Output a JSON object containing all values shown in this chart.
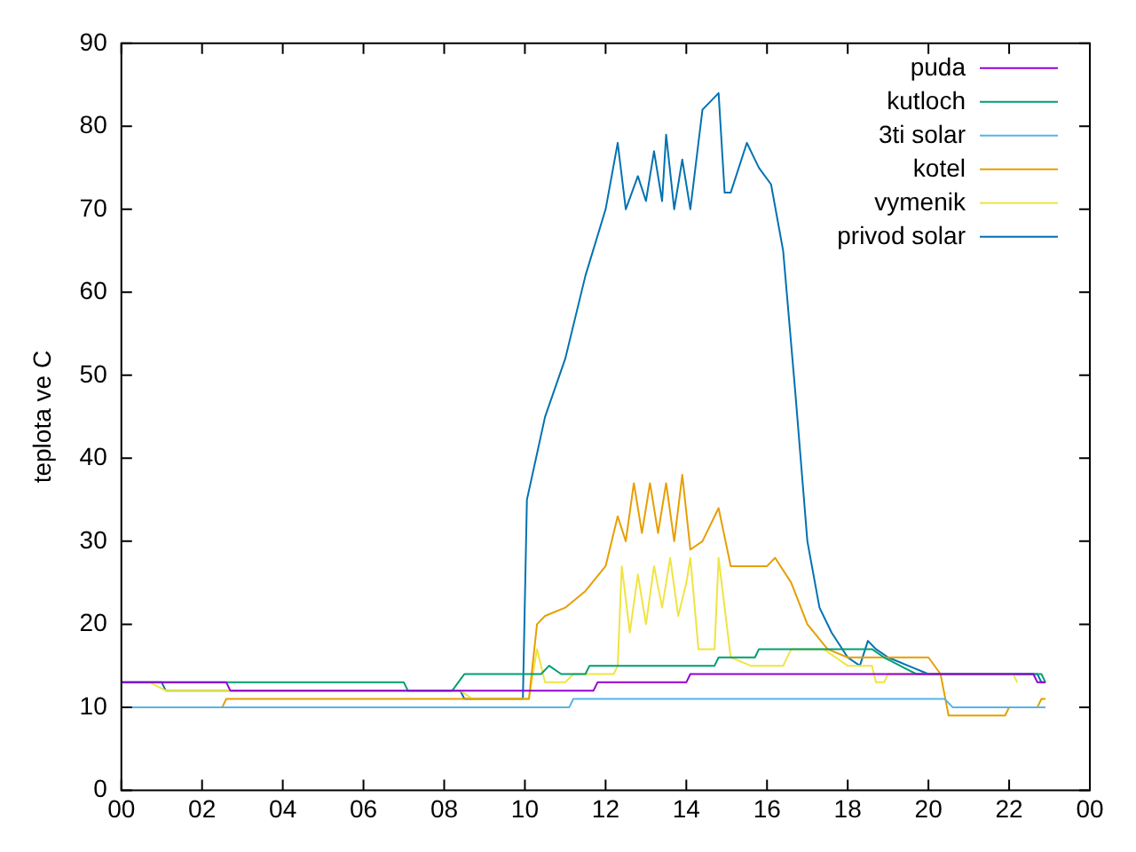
{
  "chart_data": {
    "type": "line",
    "ylabel": "teplota ve C",
    "xlim": [
      0,
      24
    ],
    "xticks": [
      {
        "value": 0,
        "label": "00"
      },
      {
        "value": 2,
        "label": "02"
      },
      {
        "value": 4,
        "label": "04"
      },
      {
        "value": 6,
        "label": "06"
      },
      {
        "value": 8,
        "label": "08"
      },
      {
        "value": 10,
        "label": "10"
      },
      {
        "value": 12,
        "label": "12"
      },
      {
        "value": 14,
        "label": "14"
      },
      {
        "value": 16,
        "label": "16"
      },
      {
        "value": 18,
        "label": "18"
      },
      {
        "value": 20,
        "label": "20"
      },
      {
        "value": 22,
        "label": "22"
      },
      {
        "value": 24,
        "label": "00"
      }
    ],
    "ylim": [
      0,
      90
    ],
    "yticks": [
      0,
      10,
      20,
      30,
      40,
      50,
      60,
      70,
      80,
      90
    ],
    "grid": false,
    "legend": "top right",
    "marker": "none",
    "line_style": "solid",
    "series": [
      {
        "name": "puda",
        "color": "#9400d3",
        "x": [
          0,
          2.6,
          2.7,
          11.7,
          11.8,
          14.0,
          14.1,
          22.6,
          22.7,
          22.9
        ],
        "values": [
          13,
          13,
          12,
          12,
          13,
          13,
          14,
          14,
          13,
          13
        ]
      },
      {
        "name": "kutloch",
        "color": "#009e73",
        "x": [
          0,
          7.0,
          7.1,
          8.2,
          8.5,
          10.4,
          10.6,
          10.9,
          11.0,
          11.5,
          11.6,
          12.0,
          12.1,
          14.7,
          14.8,
          15.7,
          15.8,
          18.6,
          18.9,
          19.3,
          19.7,
          22.8,
          22.9
        ],
        "values": [
          13,
          13,
          12,
          12,
          14,
          14,
          15,
          14,
          14,
          14,
          15,
          15,
          15,
          15,
          16,
          16,
          17,
          17,
          16,
          15,
          14,
          14,
          13
        ]
      },
      {
        "name": "3ti solar",
        "color": "#56b4e9",
        "x": [
          0,
          11.1,
          11.2,
          20.4,
          20.6,
          22.9
        ],
        "values": [
          10,
          10,
          11,
          11,
          10,
          10
        ]
      },
      {
        "name": "kotel",
        "color": "#e69f00",
        "x": [
          0,
          2.5,
          2.6,
          10.0,
          10.1,
          10.3,
          10.5,
          11.0,
          11.5,
          12.0,
          12.3,
          12.5,
          12.7,
          12.9,
          13.1,
          13.3,
          13.5,
          13.7,
          13.9,
          14.1,
          14.4,
          14.8,
          15.1,
          16.0,
          16.2,
          16.6,
          17.0,
          17.5,
          18.0,
          20.0,
          20.3,
          20.5,
          21.9,
          22.0,
          22.7,
          22.8,
          22.9
        ],
        "values": [
          10,
          10,
          11,
          11,
          11,
          20,
          21,
          22,
          24,
          27,
          33,
          30,
          37,
          31,
          37,
          31,
          37,
          30,
          38,
          29,
          30,
          34,
          27,
          27,
          28,
          25,
          20,
          17,
          16,
          16,
          14,
          9,
          9,
          10,
          10,
          11,
          11
        ]
      },
      {
        "name": "vymenik",
        "color": "#f0e442",
        "x": [
          0.7,
          1.1,
          8.4,
          8.7,
          10.1,
          10.3,
          10.5,
          11.0,
          11.2,
          12.2,
          12.3,
          12.4,
          12.6,
          12.8,
          13.0,
          13.2,
          13.4,
          13.6,
          13.8,
          14.0,
          14.1,
          14.3,
          14.7,
          14.8,
          15.1,
          15.6,
          16.4,
          16.6,
          17.4,
          17.7,
          18.0,
          18.6,
          18.7,
          18.9,
          19.0,
          22.1,
          22.2
        ],
        "values": [
          13,
          12,
          12,
          11,
          11,
          17,
          13,
          13,
          14,
          14,
          15,
          27,
          19,
          26,
          20,
          27,
          22,
          28,
          21,
          25,
          28,
          17,
          17,
          28,
          16,
          15,
          15,
          17,
          17,
          16,
          15,
          15,
          13,
          13,
          14,
          14,
          13
        ]
      },
      {
        "name": "privod solar",
        "color": "#0072b2",
        "x": [
          0,
          1.0,
          1.1,
          8.4,
          8.5,
          9.95,
          10.05,
          10.5,
          11.0,
          11.5,
          12.0,
          12.3,
          12.5,
          12.8,
          13.0,
          13.2,
          13.4,
          13.5,
          13.7,
          13.9,
          14.1,
          14.4,
          14.8,
          14.95,
          15.1,
          15.5,
          15.8,
          16.1,
          16.4,
          16.7,
          17.0,
          17.3,
          17.6,
          18.0,
          18.3,
          18.5,
          18.7,
          19.0,
          19.5,
          20.0,
          22.7,
          22.8,
          22.9
        ],
        "values": [
          13,
          13,
          12,
          12,
          11,
          11,
          35,
          45,
          52,
          62,
          70,
          78,
          70,
          74,
          71,
          77,
          71,
          79,
          70,
          76,
          70,
          82,
          84,
          72,
          72,
          78,
          75,
          73,
          65,
          48,
          30,
          22,
          19,
          16,
          15,
          18,
          17,
          16,
          15,
          14,
          14,
          13,
          13
        ]
      }
    ]
  }
}
